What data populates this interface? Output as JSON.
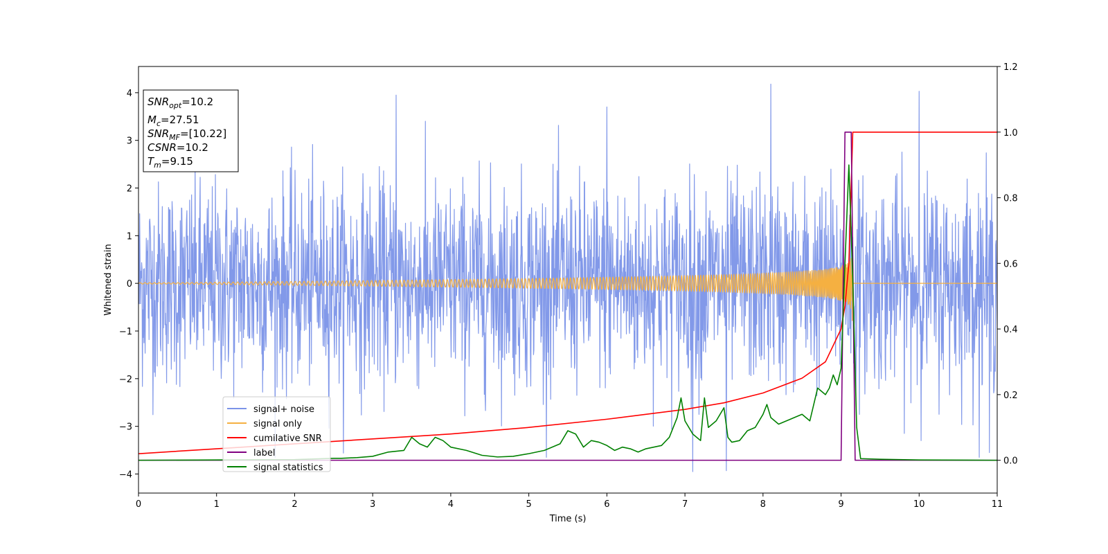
{
  "chart_data": {
    "type": "line",
    "title": "",
    "xlabel": "Time (s)",
    "ylabel": "Whitened strain",
    "xlim": [
      0,
      11
    ],
    "ylim_left": [
      -4.4,
      4.55
    ],
    "ylim_right": [
      -0.1,
      1.2
    ],
    "x_ticks": [
      0,
      1,
      2,
      3,
      4,
      5,
      6,
      7,
      8,
      9,
      10,
      11
    ],
    "y_ticks_left": [
      -4,
      -3,
      -2,
      -1,
      0,
      1,
      2,
      3,
      4
    ],
    "y_ticks_right": [
      0.0,
      0.2,
      0.4,
      0.6,
      0.8,
      1.0,
      1.2
    ],
    "grid": false,
    "legend_position": "lower-left",
    "info_box": {
      "snr_opt": {
        "sym": "SNR",
        "sub": "opt",
        "val": "=10.2"
      },
      "mc": {
        "sym": "M",
        "sub": "c",
        "val": "=27.51"
      },
      "snr_mf": {
        "sym": "SNR",
        "sub": "MF",
        "val": "=[10.22]"
      },
      "csnr": {
        "sym": "CSNR",
        "sub": "",
        "val": "=10.2"
      },
      "tm": {
        "sym": "T",
        "sub": "m",
        "val": "=9.15"
      }
    },
    "series": [
      {
        "name": "signal+ noise",
        "axis": "left",
        "color": "#7b93e8",
        "kind": "noise",
        "approx_std": 1.0,
        "approx_range": [
          -3.95,
          4.2
        ],
        "notable_spikes": [
          {
            "x": 3.3,
            "y": 3.95
          },
          {
            "x": 6.0,
            "y": 3.7
          },
          {
            "x": 8.1,
            "y": 4.18
          },
          {
            "x": 10.0,
            "y": 4.03
          },
          {
            "x": 7.1,
            "y": -3.95
          },
          {
            "x": 7.53,
            "y": -3.93
          },
          {
            "x": 10.9,
            "y": -3.55
          }
        ]
      },
      {
        "name": "signal only",
        "axis": "left",
        "color": "#f5b041",
        "kind": "chirp",
        "merger_time": 9.15,
        "peak_amplitude": 0.95
      },
      {
        "name": "cumilative SNR",
        "axis": "right",
        "color": "#ff0000",
        "x": [
          0,
          1,
          2,
          3,
          4,
          5,
          6,
          7,
          7.5,
          8,
          8.5,
          8.8,
          9.0,
          9.05,
          9.1,
          9.15,
          9.2,
          11
        ],
        "y": [
          0.02,
          0.035,
          0.05,
          0.065,
          0.08,
          0.1,
          0.125,
          0.155,
          0.175,
          0.205,
          0.25,
          0.3,
          0.4,
          0.47,
          0.6,
          1.0,
          1.0,
          1.0
        ]
      },
      {
        "name": "label",
        "axis": "right",
        "color": "#800080",
        "x": [
          0,
          9.0,
          9.05,
          9.13,
          9.18,
          11
        ],
        "y": [
          0,
          0,
          1.0,
          1.0,
          0,
          0
        ]
      },
      {
        "name": "signal statistics",
        "axis": "right",
        "color": "#008000",
        "x": [
          0,
          1,
          2,
          2.5,
          2.6,
          2.8,
          3.0,
          3.2,
          3.4,
          3.5,
          3.6,
          3.7,
          3.8,
          3.9,
          4.0,
          4.2,
          4.4,
          4.6,
          4.8,
          5.0,
          5.2,
          5.3,
          5.4,
          5.5,
          5.6,
          5.7,
          5.8,
          5.9,
          6.0,
          6.1,
          6.2,
          6.3,
          6.4,
          6.5,
          6.6,
          6.7,
          6.8,
          6.9,
          6.95,
          7.0,
          7.1,
          7.2,
          7.25,
          7.3,
          7.4,
          7.5,
          7.55,
          7.6,
          7.7,
          7.8,
          7.9,
          8.0,
          8.05,
          8.1,
          8.15,
          8.2,
          8.3,
          8.4,
          8.5,
          8.55,
          8.6,
          8.7,
          8.8,
          8.85,
          8.9,
          8.95,
          9.0,
          9.05,
          9.1,
          9.15,
          9.2,
          9.25,
          9.5,
          10,
          11
        ],
        "y": [
          0,
          0.001,
          0.002,
          0.006,
          0.006,
          0.008,
          0.012,
          0.025,
          0.03,
          0.07,
          0.05,
          0.04,
          0.07,
          0.06,
          0.04,
          0.03,
          0.015,
          0.01,
          0.012,
          0.02,
          0.03,
          0.04,
          0.05,
          0.09,
          0.08,
          0.04,
          0.06,
          0.055,
          0.045,
          0.03,
          0.04,
          0.035,
          0.025,
          0.035,
          0.04,
          0.045,
          0.07,
          0.13,
          0.19,
          0.12,
          0.08,
          0.06,
          0.19,
          0.1,
          0.12,
          0.16,
          0.07,
          0.055,
          0.06,
          0.09,
          0.1,
          0.14,
          0.17,
          0.13,
          0.12,
          0.11,
          0.12,
          0.13,
          0.14,
          0.13,
          0.12,
          0.22,
          0.2,
          0.22,
          0.26,
          0.23,
          0.28,
          0.6,
          0.9,
          0.55,
          0.1,
          0.005,
          0.003,
          0.001,
          0
        ]
      }
    ]
  }
}
